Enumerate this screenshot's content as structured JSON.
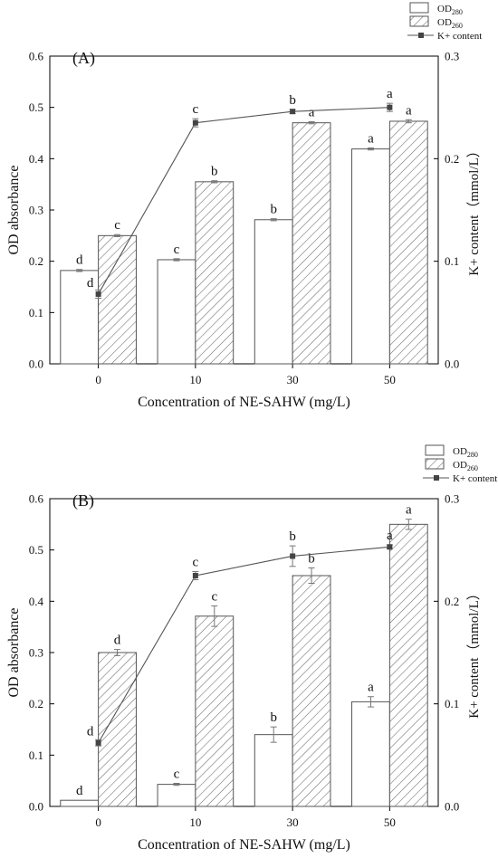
{
  "chart_data": [
    {
      "type": "bar",
      "panel_label": "(A)",
      "categories": [
        "0",
        "10",
        "30",
        "50"
      ],
      "xlabel": "Concentration of NE-SAHW (mg/L)",
      "ylabel": "OD absorbance",
      "ylabel_right": "K+ content（mmol/L）",
      "ylim": [
        0,
        0.6
      ],
      "yticks": [
        "0.0",
        "0.1",
        "0.2",
        "0.3",
        "0.4",
        "0.5",
        "0.6"
      ],
      "ylim_right": [
        0,
        0.3
      ],
      "yticks_right": [
        "0.0",
        "0.1",
        "0.2",
        "0.3"
      ],
      "legend_position": "top-right",
      "series": [
        {
          "name": "OD",
          "sub": "280",
          "kind": "bar-plain",
          "values": [
            0.182,
            0.203,
            0.281,
            0.419
          ],
          "errors": [
            0.002,
            0.002,
            0.002,
            0.002
          ],
          "letters": [
            "d",
            "c",
            "b",
            "a"
          ]
        },
        {
          "name": "OD",
          "sub": "260",
          "kind": "bar-hatched",
          "values": [
            0.25,
            0.355,
            0.47,
            0.473
          ],
          "errors": [
            0.002,
            0.002,
            0.002,
            0.003
          ],
          "letters": [
            "c",
            "b",
            "a",
            "a"
          ]
        },
        {
          "name": "K+ content",
          "kind": "line",
          "axis": "right",
          "values": [
            0.068,
            0.235,
            0.246,
            0.25
          ],
          "errors": [
            0.004,
            0.004,
            0.002,
            0.004
          ],
          "letters": [
            "d",
            "c",
            "b",
            "a"
          ]
        }
      ]
    },
    {
      "type": "bar",
      "panel_label": "(B)",
      "categories": [
        "0",
        "10",
        "30",
        "50"
      ],
      "xlabel": "Concentration of NE-SAHW (mg/L)",
      "ylabel": "OD absorbance",
      "ylabel_right": "K+ content（mmol/L）",
      "ylim": [
        0,
        0.6
      ],
      "yticks": [
        "0.0",
        "0.1",
        "0.2",
        "0.3",
        "0.4",
        "0.5",
        "0.6"
      ],
      "ylim_right": [
        0,
        0.3
      ],
      "yticks_right": [
        "0.0",
        "0.1",
        "0.2",
        "0.3"
      ],
      "legend_position": "top-right",
      "series": [
        {
          "name": "OD",
          "sub": "280",
          "kind": "bar-plain",
          "values": [
            0.012,
            0.043,
            0.14,
            0.204
          ],
          "errors": [
            0.0,
            0.002,
            0.015,
            0.01
          ],
          "letters": [
            "d",
            "c",
            "b",
            "a"
          ]
        },
        {
          "name": "OD",
          "sub": "260",
          "kind": "bar-hatched",
          "values": [
            0.3,
            0.371,
            0.45,
            0.55
          ],
          "errors": [
            0.006,
            0.02,
            0.015,
            0.01
          ],
          "letters": [
            "d",
            "c",
            "b",
            "a"
          ]
        },
        {
          "name": "K+ content",
          "kind": "line",
          "axis": "right",
          "values": [
            0.062,
            0.225,
            0.244,
            0.253
          ],
          "errors": [
            0.003,
            0.004,
            0.01,
            0.002
          ],
          "letters": [
            "d",
            "c",
            "b",
            "a"
          ]
        }
      ]
    }
  ]
}
